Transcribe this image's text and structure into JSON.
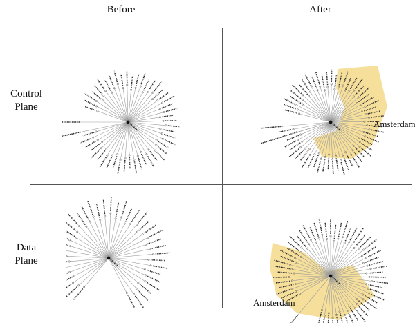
{
  "columns": {
    "before": "Before",
    "after": "After"
  },
  "rows": {
    "control_plane": [
      "Control",
      "Plane"
    ],
    "data_plane": [
      "Data",
      "Plane"
    ]
  },
  "highlight": {
    "label": "Amsterdam",
    "color": "#f3d98a"
  },
  "colors": {
    "tree_line": "#9a9a9a",
    "node_text": "#333333",
    "divider": "#555555"
  },
  "panels": [
    {
      "id": "control-before",
      "leaves": 48,
      "start_angle": 200,
      "span": 330,
      "rays": 2,
      "highlight": false
    },
    {
      "id": "control-after",
      "leaves": 58,
      "start_angle": 195,
      "span": 340,
      "rays": 2,
      "highlight": true
    },
    {
      "id": "data-before",
      "leaves": 40,
      "start_angle": 130,
      "span": 300,
      "rays": 0,
      "highlight": false
    },
    {
      "id": "data-after",
      "leaves": 56,
      "start_angle": 150,
      "span": 320,
      "rays": 1,
      "highlight": true
    }
  ]
}
